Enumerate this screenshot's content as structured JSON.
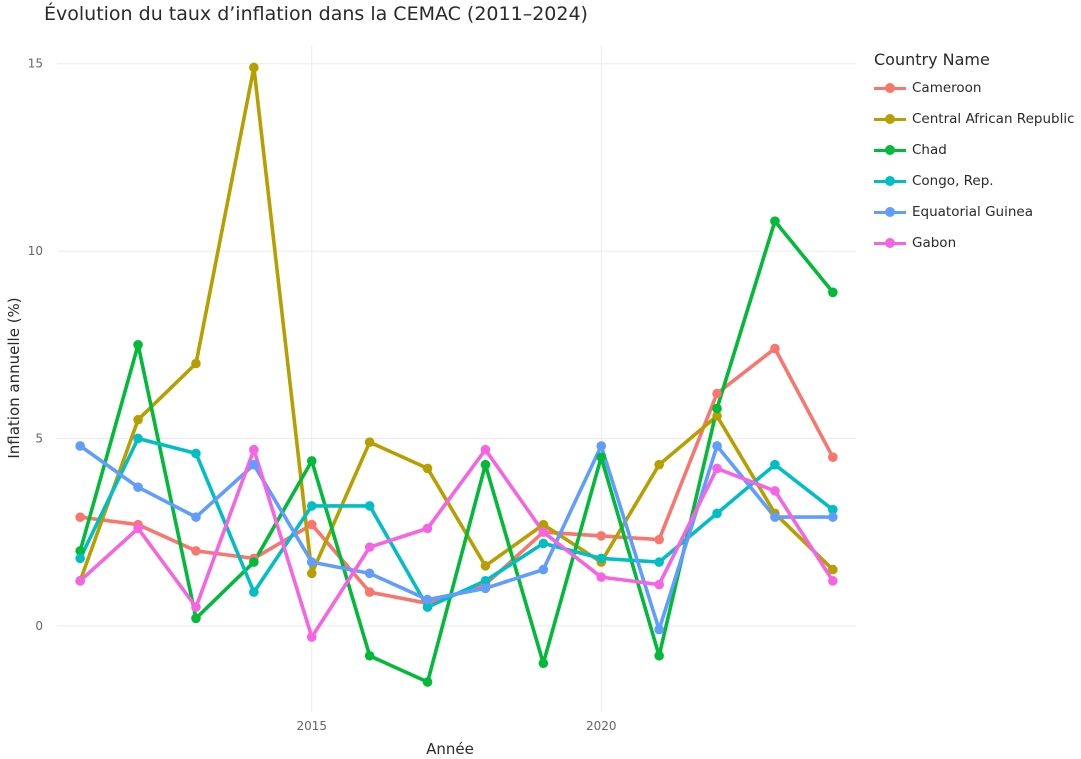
{
  "chart_data": {
    "type": "line",
    "title": "Évolution du taux d’inflation dans la CEMAC (2011–2024)",
    "xlabel": "Année",
    "ylabel": "Inflation annuelle (%)",
    "x": [
      2011,
      2012,
      2013,
      2014,
      2015,
      2016,
      2017,
      2018,
      2019,
      2020,
      2021,
      2022,
      2023,
      2024
    ],
    "xlim": [
      2010.6,
      2024.4
    ],
    "ylim": [
      -2.3,
      15.5
    ],
    "xticks": [
      2015,
      2020
    ],
    "yticks": [
      0,
      5,
      10,
      15
    ],
    "grid": true,
    "legend_title": "Country Name",
    "legend_position": "right",
    "series": [
      {
        "name": "Cameroon",
        "color": "#F8766D",
        "values": [
          2.9,
          2.7,
          2.0,
          1.8,
          2.7,
          0.9,
          0.6,
          1.1,
          2.5,
          2.4,
          2.3,
          6.2,
          7.4,
          4.5
        ]
      },
      {
        "name": "Central African Republic",
        "color": "#B79F00",
        "values": [
          1.2,
          5.5,
          7.0,
          14.9,
          1.4,
          4.9,
          4.2,
          1.6,
          2.7,
          1.7,
          4.3,
          5.6,
          3.0,
          1.5
        ]
      },
      {
        "name": "Chad",
        "color": "#00BA38",
        "values": [
          2.0,
          7.5,
          0.2,
          1.7,
          4.4,
          -0.8,
          -1.5,
          4.3,
          -1.0,
          4.5,
          -0.8,
          5.8,
          10.8,
          8.9
        ]
      },
      {
        "name": "Congo, Rep.",
        "color": "#00BFC4",
        "values": [
          1.8,
          5.0,
          4.6,
          0.9,
          3.2,
          3.2,
          0.5,
          1.2,
          2.2,
          1.8,
          1.7,
          3.0,
          4.3,
          3.1
        ]
      },
      {
        "name": "Equatorial Guinea",
        "color": "#619CFF",
        "values": [
          4.8,
          3.7,
          2.9,
          4.3,
          1.7,
          1.4,
          0.7,
          1.0,
          1.5,
          4.8,
          -0.1,
          4.8,
          2.9,
          2.9
        ]
      },
      {
        "name": "Gabon",
        "color": "#F564E3",
        "values": [
          1.2,
          2.6,
          0.5,
          4.7,
          -0.3,
          2.1,
          2.6,
          4.7,
          2.5,
          1.3,
          1.1,
          4.2,
          3.6,
          1.2
        ]
      }
    ]
  }
}
